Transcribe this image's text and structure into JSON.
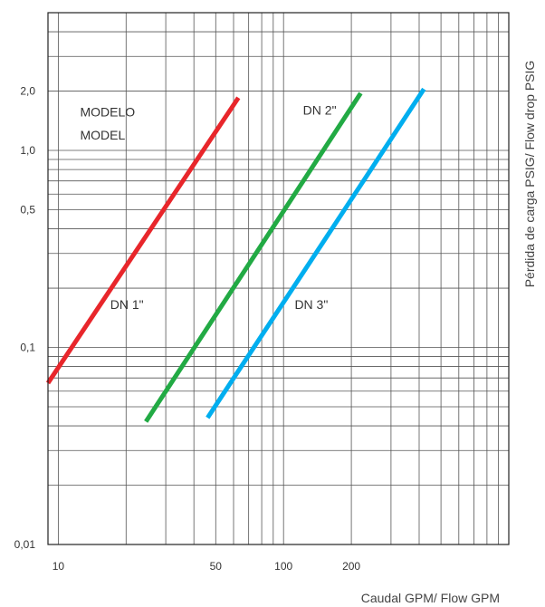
{
  "chart_data": {
    "type": "line",
    "title": "",
    "xlabel": "Caudal GPM/ Flow GPM",
    "ylabel": "Pérdida de carga PSIG/ Flow drop PSIG",
    "x_scale": "log",
    "y_scale": "log",
    "xlim": [
      9,
      1000
    ],
    "ylim": [
      0.01,
      5
    ],
    "grid": true,
    "x_ticks": [
      {
        "value": 10,
        "label": "10"
      },
      {
        "value": 50,
        "label": "50"
      },
      {
        "value": 100,
        "label": "100"
      },
      {
        "value": 200,
        "label": "200"
      }
    ],
    "y_ticks": [
      {
        "value": 2,
        "label": "2,0"
      },
      {
        "value": 1,
        "label": "1,0"
      },
      {
        "value": 0.5,
        "label": "0,5"
      },
      {
        "value": 0.1,
        "label": "0,1"
      },
      {
        "value": 0.01,
        "label": "0,01"
      }
    ],
    "series": [
      {
        "name": "DN 1\"",
        "color": "#e8262b",
        "x": [
          9,
          63
        ],
        "y": [
          0.066,
          1.85
        ]
      },
      {
        "name": "DN 2\"",
        "color": "#22aa44",
        "x": [
          24.5,
          220
        ],
        "y": [
          0.042,
          1.95
        ]
      },
      {
        "name": "DN 3\"",
        "color": "#00aeef",
        "x": [
          46,
          420
        ],
        "y": [
          0.044,
          2.05
        ]
      }
    ],
    "annotations": [
      {
        "text": "MODELO",
        "x": 12.5,
        "y": 1.57
      },
      {
        "text": "MODEL",
        "x": 12.5,
        "y": 1.2
      },
      {
        "text": "DN 2\"",
        "x": 122,
        "y": 1.6
      },
      {
        "text": "DN 1\"",
        "x": 17,
        "y": 0.165
      },
      {
        "text": "DN 3\"",
        "x": 112,
        "y": 0.165
      }
    ]
  }
}
